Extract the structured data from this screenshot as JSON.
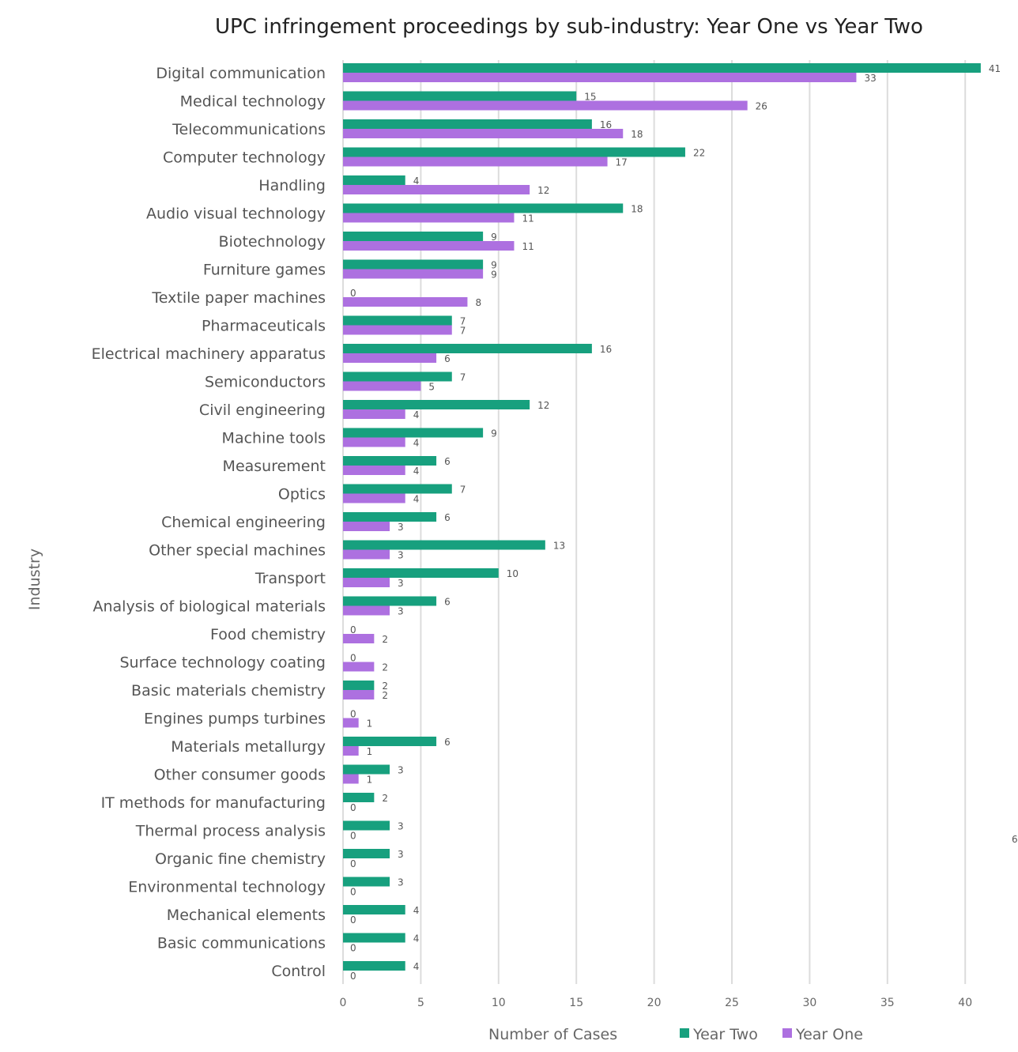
{
  "chart_data": {
    "type": "bar",
    "orientation": "horizontal",
    "title": "UPC infringement proceedings by sub-industry: Year One vs Year Two",
    "xlabel": "Number of Cases",
    "ylabel": "Industry",
    "xlim": [
      0,
      41
    ],
    "xticks": [
      "0",
      "5",
      "10",
      "15",
      "20",
      "25",
      "30",
      "35",
      "40"
    ],
    "grid": true,
    "legend_position": "bottom",
    "categories": [
      "Digital communication",
      "Medical technology",
      "Telecommunications",
      "Computer technology",
      "Handling",
      "Audio visual technology",
      "Biotechnology",
      "Furniture games",
      "Textile paper machines",
      "Pharmaceuticals",
      "Electrical machinery apparatus",
      "Semiconductors",
      "Civil engineering",
      "Machine tools",
      "Measurement",
      "Optics",
      "Chemical engineering",
      "Other special machines",
      "Transport",
      "Analysis of biological materials",
      "Food chemistry",
      "Surface technology coating",
      "Basic materials chemistry",
      "Engines pumps turbines",
      "Materials metallurgy",
      "Other consumer goods",
      "IT methods for manufacturing",
      "Thermal process analysis",
      "Organic fine chemistry",
      "Environmental technology",
      "Mechanical elements",
      "Basic communications",
      "Control"
    ],
    "series": [
      {
        "name": "Year Two",
        "color": "#17a07e",
        "values": [
          41,
          15,
          16,
          22,
          4,
          18,
          9,
          9,
          0,
          7,
          16,
          7,
          12,
          9,
          6,
          7,
          6,
          13,
          10,
          6,
          0,
          0,
          2,
          0,
          6,
          3,
          2,
          3,
          3,
          3,
          4,
          4,
          4
        ]
      },
      {
        "name": "Year One",
        "color": "#ad70e0",
        "values": [
          33,
          26,
          18,
          17,
          12,
          11,
          11,
          9,
          8,
          7,
          6,
          5,
          4,
          4,
          4,
          4,
          3,
          3,
          3,
          3,
          2,
          2,
          2,
          1,
          1,
          1,
          0,
          0,
          0,
          0,
          0,
          0,
          0
        ]
      }
    ],
    "stray_annotation": "6"
  }
}
